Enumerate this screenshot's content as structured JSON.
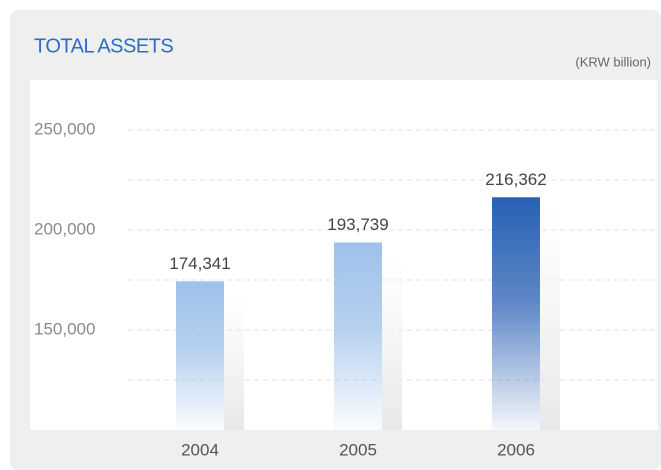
{
  "chart_data": {
    "type": "bar",
    "title": "TOTAL ASSETS",
    "unit_label": "(KRW billion)",
    "categories": [
      "2004",
      "2005",
      "2006"
    ],
    "values": [
      174341,
      193739,
      216362
    ],
    "value_labels": [
      "174,341",
      "193,739",
      "216,362"
    ],
    "colors": [
      "#9ec1ea",
      "#9ec1ea",
      "#2860b4"
    ],
    "ylim": [
      100000,
      275000
    ],
    "yticks": [
      {
        "value": 150000,
        "label": "150,000"
      },
      {
        "value": 200000,
        "label": "200,000"
      },
      {
        "value": 250000,
        "label": "250,000"
      }
    ],
    "minor_yticks": [
      125000,
      175000,
      225000
    ],
    "grid": true
  }
}
